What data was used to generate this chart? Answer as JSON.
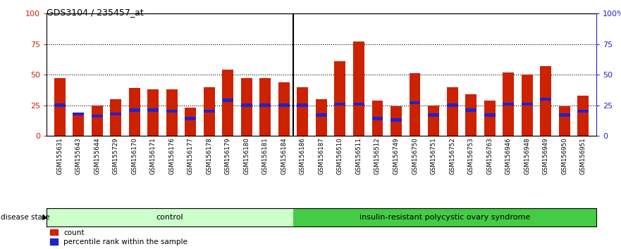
{
  "title": "GDS3104 / 235457_at",
  "samples": [
    "GSM155631",
    "GSM155643",
    "GSM155644",
    "GSM155729",
    "GSM156170",
    "GSM156171",
    "GSM156176",
    "GSM156177",
    "GSM156178",
    "GSM156179",
    "GSM156180",
    "GSM156181",
    "GSM156184",
    "GSM156186",
    "GSM156187",
    "GSM156510",
    "GSM156511",
    "GSM156512",
    "GSM156749",
    "GSM156750",
    "GSM156751",
    "GSM156752",
    "GSM156753",
    "GSM156763",
    "GSM156946",
    "GSM156948",
    "GSM156949",
    "GSM156950",
    "GSM156951"
  ],
  "count_values": [
    47,
    18,
    25,
    30,
    39,
    38,
    38,
    23,
    40,
    54,
    47,
    47,
    44,
    40,
    30,
    61,
    77,
    29,
    24,
    51,
    25,
    40,
    34,
    29,
    52,
    50,
    57,
    24,
    33
  ],
  "percentile_values": [
    25,
    18,
    16,
    18,
    21,
    21,
    20,
    14,
    20,
    29,
    25,
    25,
    25,
    25,
    17,
    26,
    26,
    14,
    13,
    27,
    17,
    25,
    21,
    17,
    26,
    26,
    30,
    17,
    20
  ],
  "control_count": 13,
  "disease_count": 16,
  "control_label": "control",
  "disease_label": "insulin-resistant polycystic ovary syndrome",
  "bar_color_red": "#CC2200",
  "bar_color_blue": "#2222CC",
  "control_bg": "#CCFFCC",
  "disease_bg": "#44CC44",
  "yticks": [
    0,
    25,
    50,
    75,
    100
  ],
  "ymax": 100,
  "dotted_lines": [
    25,
    50,
    75
  ],
  "legend_count": "count",
  "legend_percentile": "percentile rank within the sample",
  "disease_state_label": "disease state"
}
